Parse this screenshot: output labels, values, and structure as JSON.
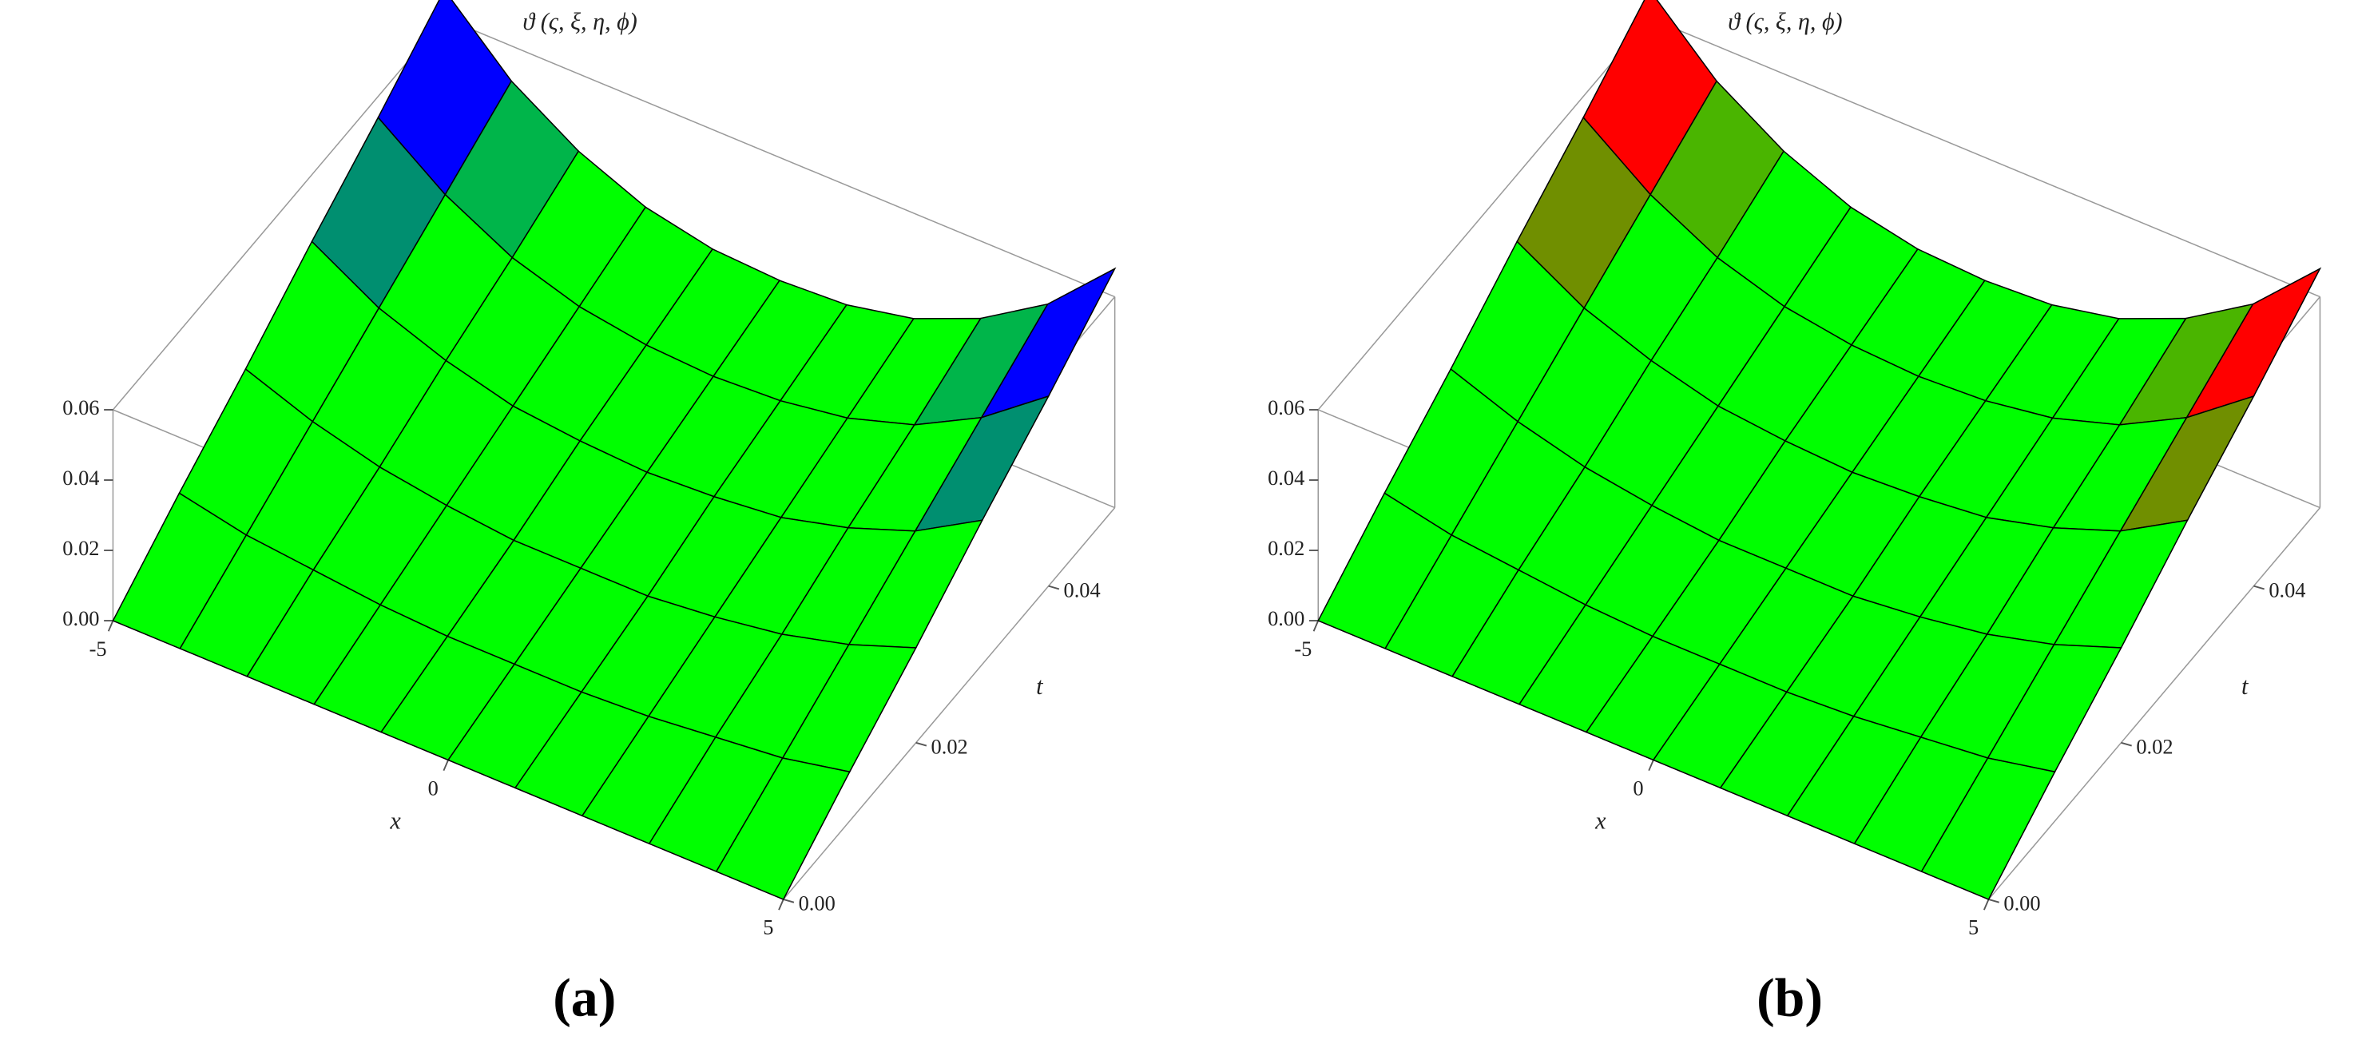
{
  "chart_data": [
    {
      "type": "surface",
      "title": "ϑ (ς, ξ, η, ϕ)",
      "x_label": "x",
      "t_label": "t",
      "panel_label": "(a)",
      "x": [
        -5,
        -4,
        -3,
        -2,
        -1,
        0,
        1,
        2,
        3,
        4,
        5
      ],
      "t": [
        0,
        0.01,
        0.02,
        0.03,
        0.04,
        0.05
      ],
      "z": [
        [
          0,
          0,
          0,
          0,
          0,
          0,
          0,
          0,
          0,
          0,
          0
        ],
        [
          0.014,
          0.01,
          0.008,
          0.006,
          0.005,
          0.005,
          0.005,
          0.006,
          0.008,
          0.01,
          0.014
        ],
        [
          0.027,
          0.02,
          0.015,
          0.012,
          0.01,
          0.01,
          0.01,
          0.012,
          0.015,
          0.02,
          0.027
        ],
        [
          0.041,
          0.03,
          0.023,
          0.018,
          0.016,
          0.015,
          0.016,
          0.018,
          0.023,
          0.03,
          0.041
        ],
        [
          0.054,
          0.04,
          0.03,
          0.024,
          0.021,
          0.02,
          0.021,
          0.024,
          0.03,
          0.04,
          0.054
        ],
        [
          0.068,
          0.05,
          0.038,
          0.03,
          0.026,
          0.025,
          0.026,
          0.03,
          0.038,
          0.05,
          0.068
        ]
      ],
      "xlim": [
        -5,
        5
      ],
      "tlim": [
        0,
        0.05
      ],
      "zlim": [
        0,
        0.06
      ],
      "xticks": [
        -5,
        0,
        5
      ],
      "tticks": [
        {
          "value": 0,
          "label": "0.00"
        },
        0.02,
        0.04
      ],
      "zticks": [
        {
          "value": 0,
          "label": "0.00"
        },
        0.02,
        0.04,
        0.06
      ],
      "colors": {
        "surface": "#00ff00",
        "high": "#0000ff"
      }
    },
    {
      "type": "surface",
      "title": "ϑ (ς, ξ, η, ϕ)",
      "x_label": "x",
      "t_label": "t",
      "panel_label": "(b)",
      "x": [
        -5,
        -4,
        -3,
        -2,
        -1,
        0,
        1,
        2,
        3,
        4,
        5
      ],
      "t": [
        0,
        0.01,
        0.02,
        0.03,
        0.04,
        0.05
      ],
      "z": [
        [
          0,
          0,
          0,
          0,
          0,
          0,
          0,
          0,
          0,
          0,
          0
        ],
        [
          0.014,
          0.01,
          0.008,
          0.006,
          0.005,
          0.005,
          0.005,
          0.006,
          0.008,
          0.01,
          0.014
        ],
        [
          0.027,
          0.02,
          0.015,
          0.012,
          0.01,
          0.01,
          0.01,
          0.012,
          0.015,
          0.02,
          0.027
        ],
        [
          0.041,
          0.03,
          0.023,
          0.018,
          0.016,
          0.015,
          0.016,
          0.018,
          0.023,
          0.03,
          0.041
        ],
        [
          0.054,
          0.04,
          0.03,
          0.024,
          0.021,
          0.02,
          0.021,
          0.024,
          0.03,
          0.04,
          0.054
        ],
        [
          0.068,
          0.05,
          0.038,
          0.03,
          0.026,
          0.025,
          0.026,
          0.03,
          0.038,
          0.05,
          0.068
        ]
      ],
      "xlim": [
        -5,
        5
      ],
      "tlim": [
        0,
        0.05
      ],
      "zlim": [
        0,
        0.06
      ],
      "xticks": [
        -5,
        0,
        5
      ],
      "tticks": [
        {
          "value": 0,
          "label": "0.00"
        },
        0.02,
        0.04
      ],
      "zticks": [
        {
          "value": 0,
          "label": "0.00"
        },
        0.02,
        0.04,
        0.06
      ],
      "colors": {
        "surface": "#00ff00",
        "high": "#ff0000"
      }
    }
  ]
}
